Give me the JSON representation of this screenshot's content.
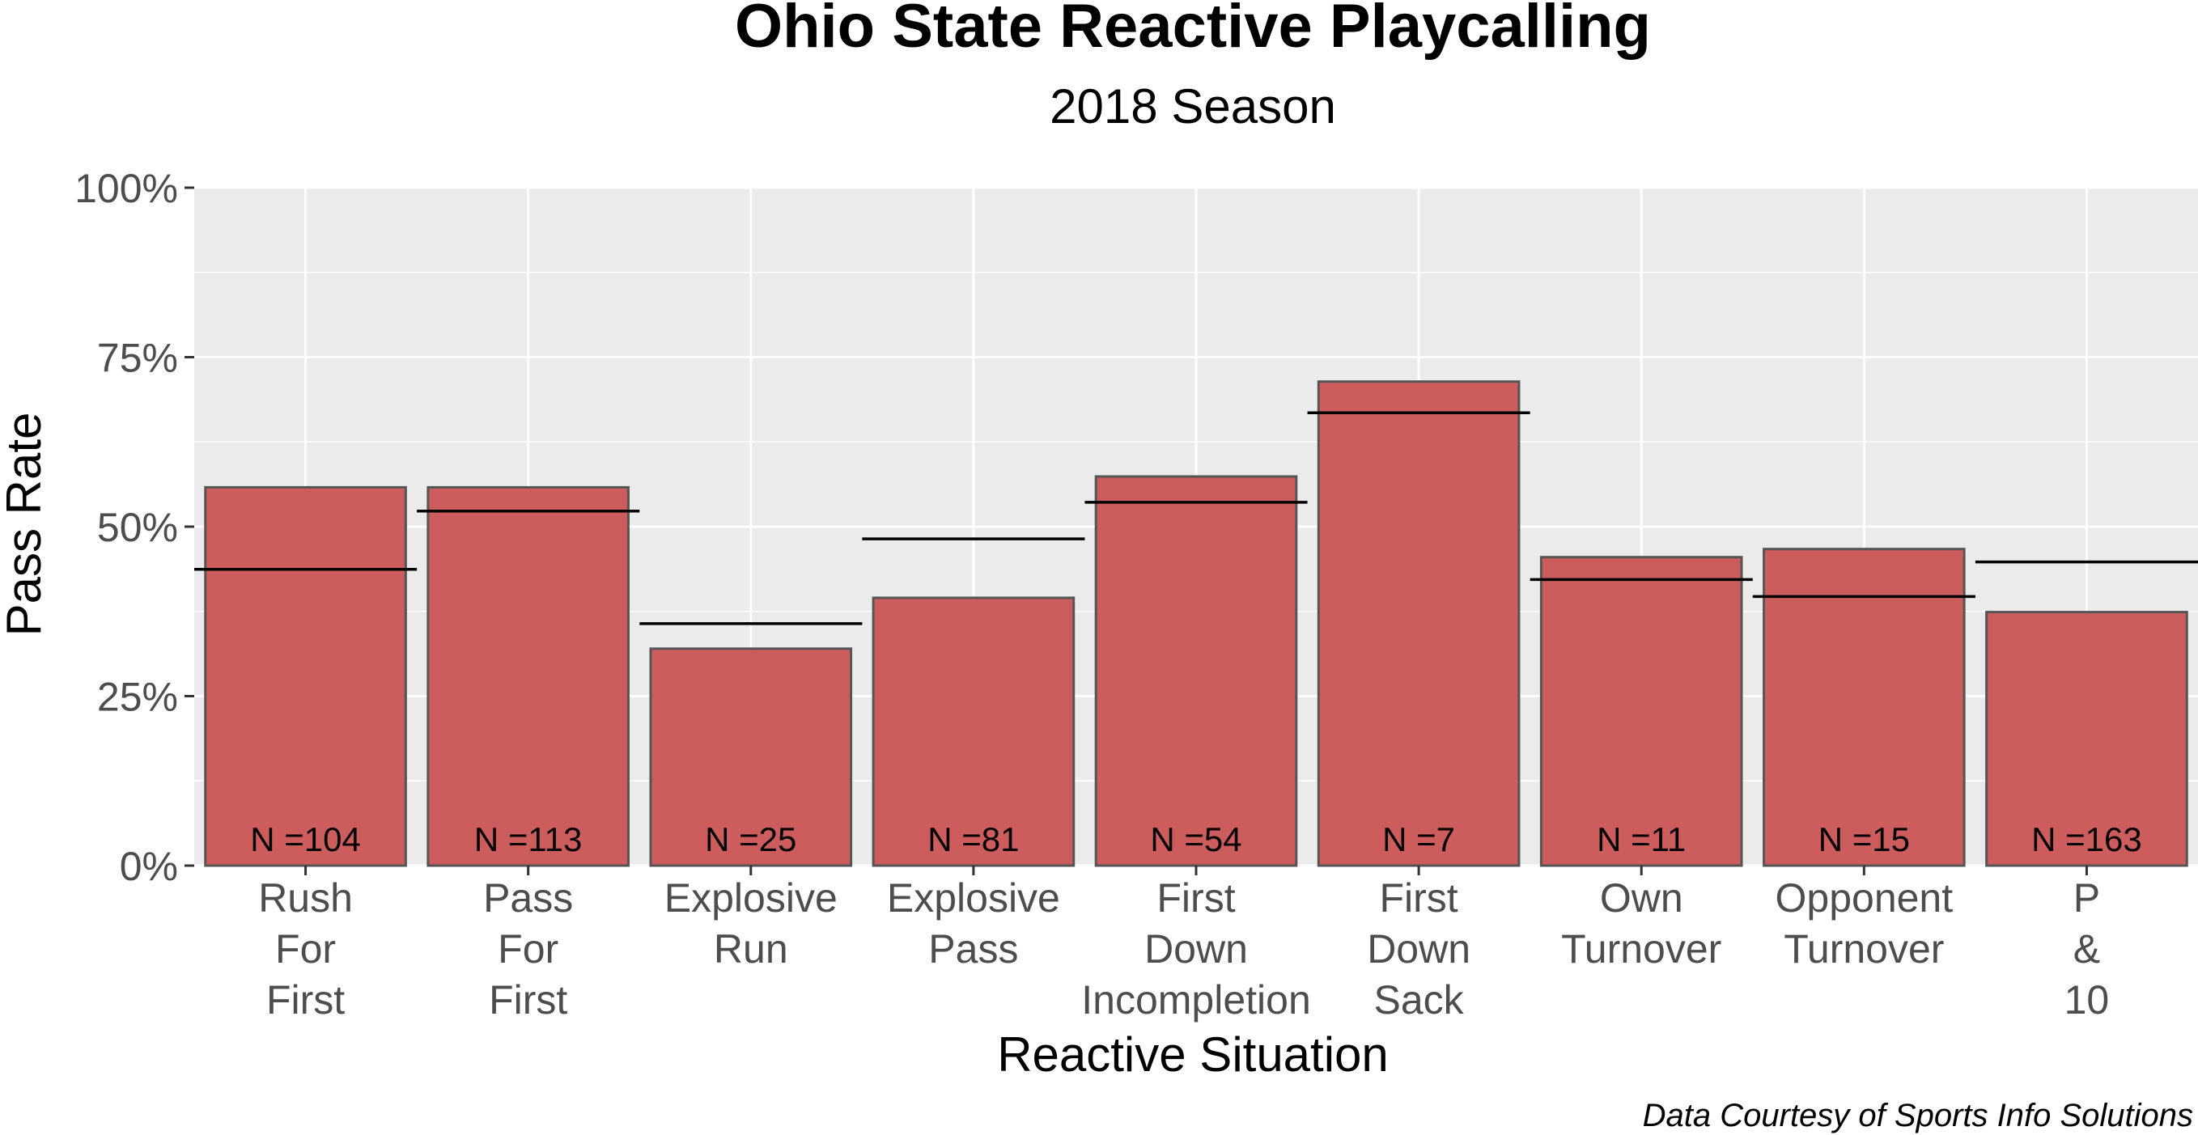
{
  "chart_data": {
    "type": "bar",
    "title": "Ohio State Reactive Playcalling",
    "subtitle": "2018 Season",
    "xlabel": "Reactive Situation",
    "ylabel": "Pass Rate",
    "caption": "Data Courtesy of Sports Info Solutions",
    "ylim": [
      0,
      1
    ],
    "y_ticks": [
      0,
      0.25,
      0.5,
      0.75,
      1
    ],
    "y_tick_labels": [
      "0%",
      "25%",
      "50%",
      "75%",
      "100%"
    ],
    "grid": true,
    "colors": {
      "bar_fill": "#cd5c5c",
      "bar_stroke": "#555555",
      "panel": "#ebebeb",
      "grid": "#ffffff",
      "reference_line": "#000000"
    },
    "categories": [
      [
        "Rush",
        "For",
        "First"
      ],
      [
        "Pass",
        "For",
        "First"
      ],
      [
        "Explosive",
        "Run"
      ],
      [
        "Explosive",
        "Pass"
      ],
      [
        "First",
        "Down",
        "Incompletion"
      ],
      [
        "First",
        "Down",
        "Sack"
      ],
      [
        "Own",
        "Turnover"
      ],
      [
        "Opponent",
        "Turnover"
      ],
      [
        "P",
        "&",
        "10"
      ]
    ],
    "values": [
      0.558,
      0.558,
      0.32,
      0.395,
      0.574,
      0.714,
      0.455,
      0.467,
      0.374
    ],
    "reference_values": [
      0.437,
      0.523,
      0.357,
      0.482,
      0.536,
      0.668,
      0.422,
      0.397,
      0.448
    ],
    "counts": [
      "N =104",
      "N =113",
      "N =25",
      "N =81",
      "N =54",
      "N =7",
      "N =11",
      "N =15",
      "N =163"
    ]
  }
}
